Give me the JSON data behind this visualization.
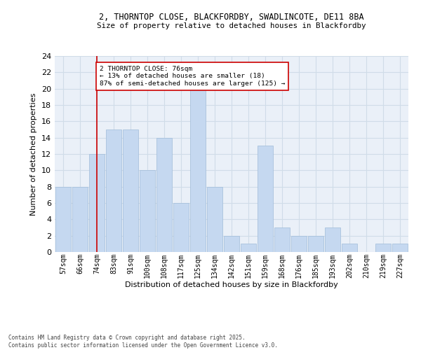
{
  "title1": "2, THORNTOP CLOSE, BLACKFORDBY, SWADLINCOTE, DE11 8BA",
  "title2": "Size of property relative to detached houses in Blackfordby",
  "xlabel": "Distribution of detached houses by size in Blackfordby",
  "ylabel": "Number of detached properties",
  "bin_labels": [
    "57sqm",
    "66sqm",
    "74sqm",
    "83sqm",
    "91sqm",
    "100sqm",
    "108sqm",
    "117sqm",
    "125sqm",
    "134sqm",
    "142sqm",
    "151sqm",
    "159sqm",
    "168sqm",
    "176sqm",
    "185sqm",
    "193sqm",
    "202sqm",
    "210sqm",
    "219sqm",
    "227sqm"
  ],
  "bar_values": [
    8,
    8,
    12,
    15,
    15,
    10,
    14,
    6,
    20,
    8,
    2,
    1,
    13,
    3,
    2,
    2,
    3,
    1,
    0,
    1,
    1
  ],
  "bar_color": "#c5d8f0",
  "bar_edge_color": "#a0bcd8",
  "grid_color": "#d0dce8",
  "background_color": "#eaf0f8",
  "annotation_text": "2 THORNTOP CLOSE: 76sqm\n← 13% of detached houses are smaller (18)\n87% of semi-detached houses are larger (125) →",
  "vline_x": 2.0,
  "ylim": [
    0,
    24
  ],
  "yticks": [
    0,
    2,
    4,
    6,
    8,
    10,
    12,
    14,
    16,
    18,
    20,
    22,
    24
  ],
  "footer": "Contains HM Land Registry data © Crown copyright and database right 2025.\nContains public sector information licensed under the Open Government Licence v3.0.",
  "annotation_box_color": "#ffffff",
  "annotation_box_edge": "#cc0000",
  "vline_color": "#cc0000"
}
